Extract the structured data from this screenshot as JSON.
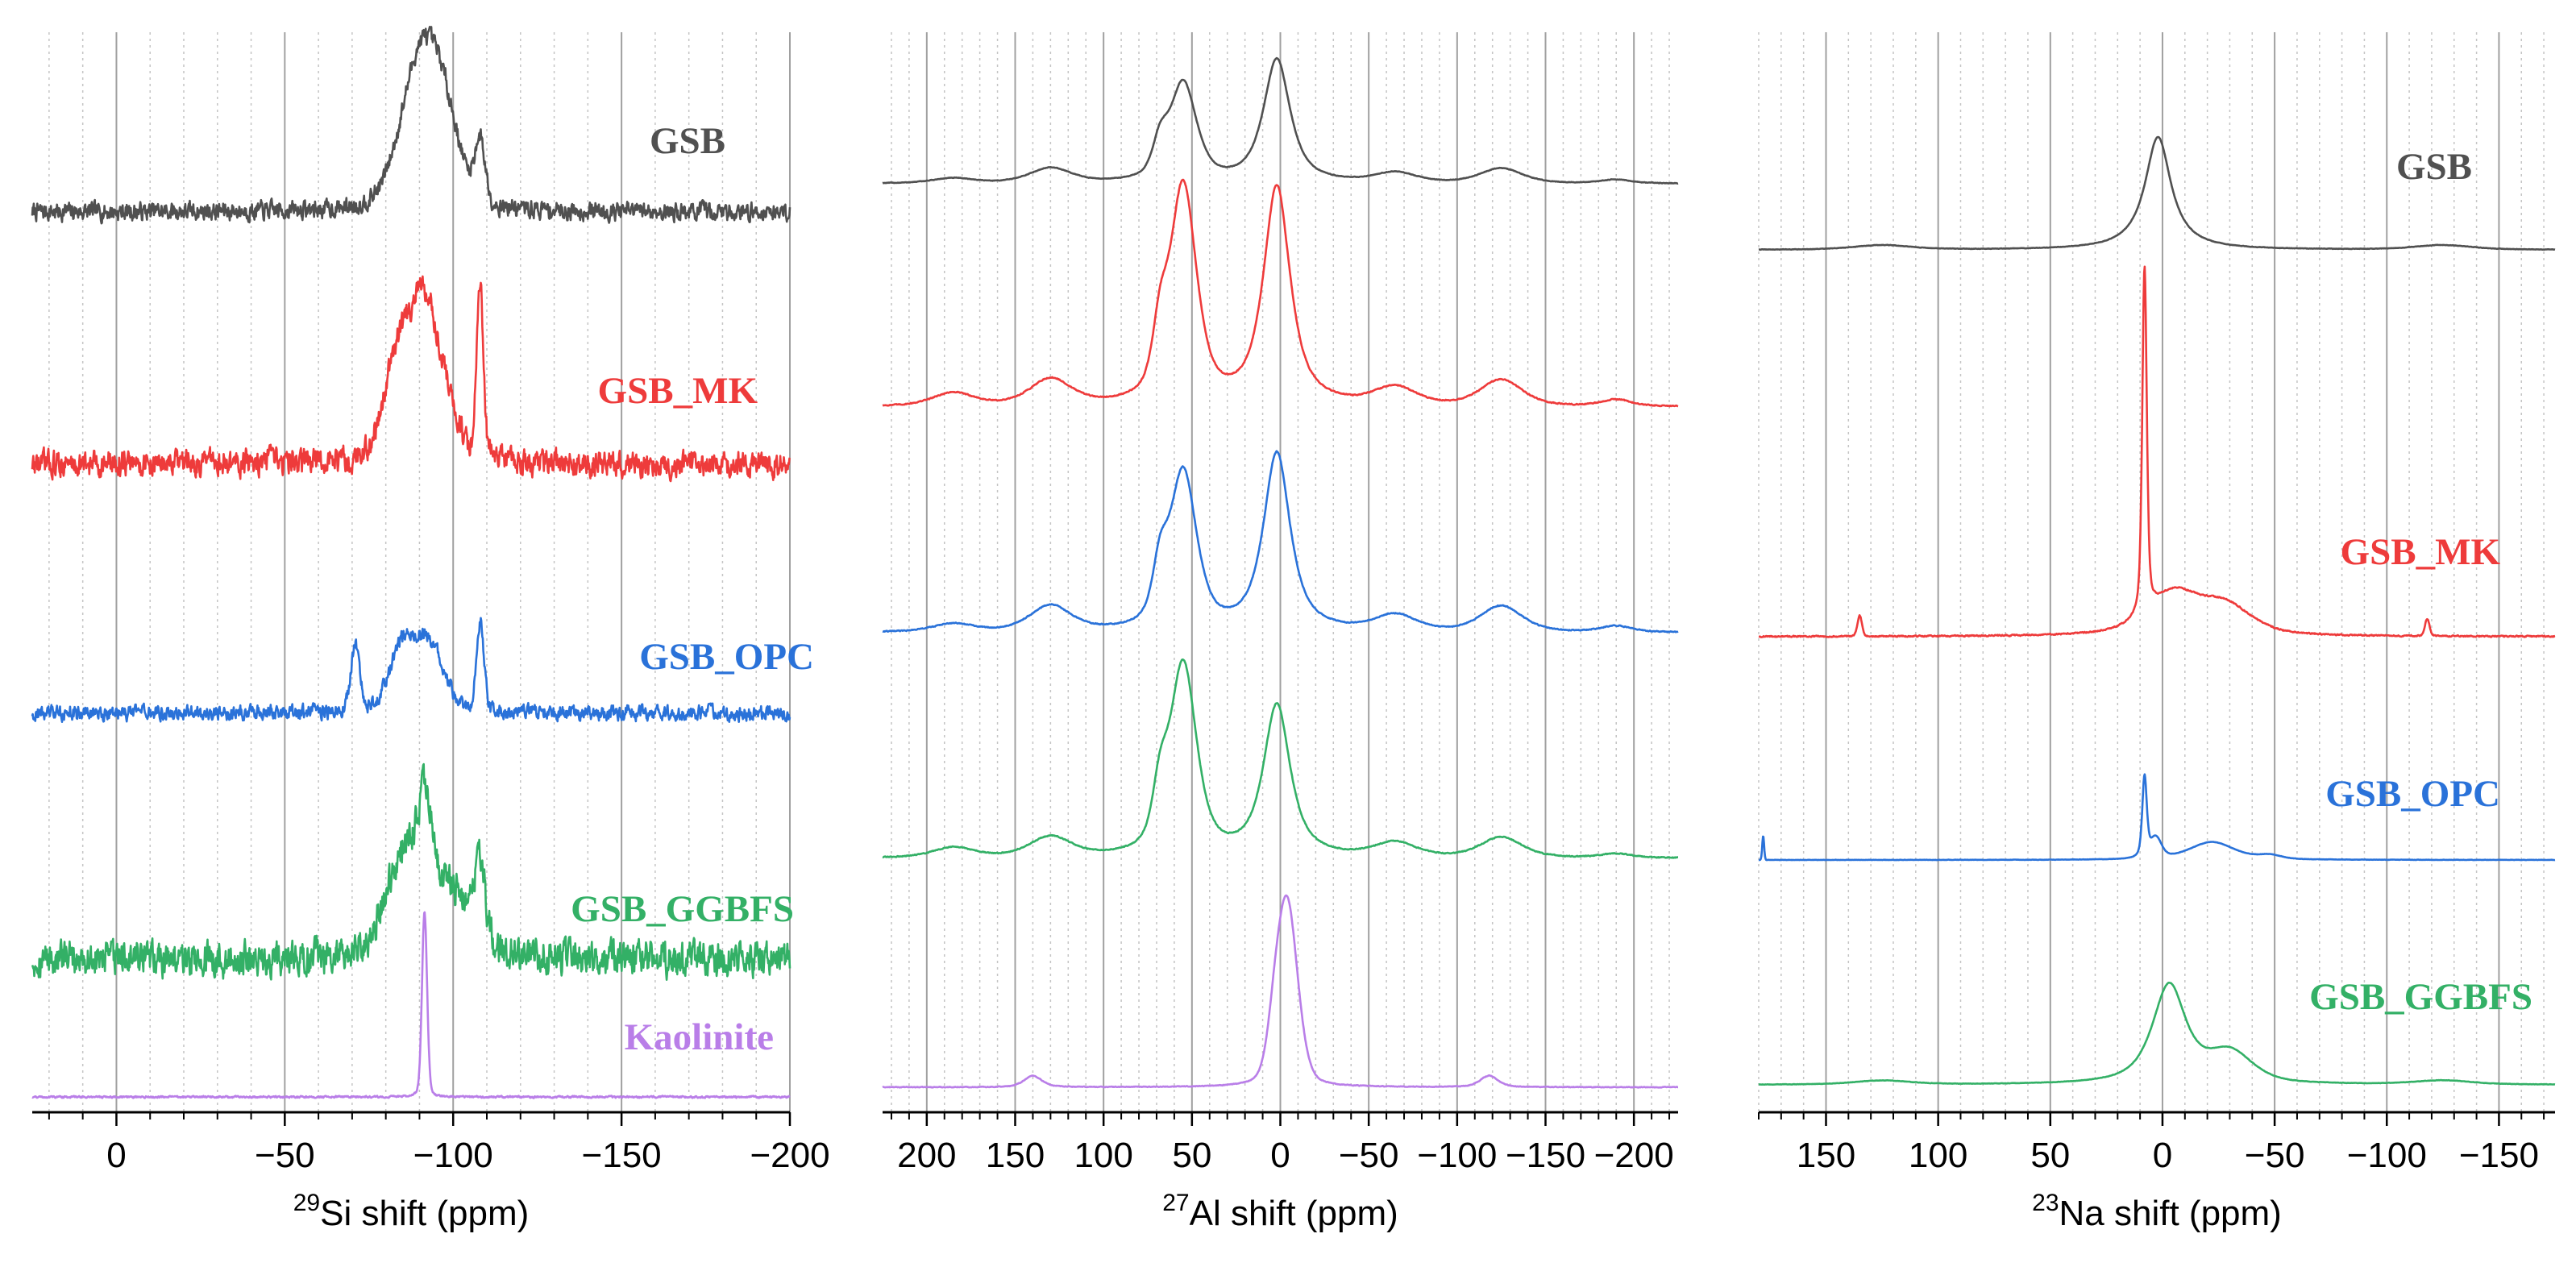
{
  "chart_data": [
    {
      "type": "line",
      "nucleus": "29Si",
      "title": "",
      "xlabel": "29Si shift (ppm)",
      "xlabel_sup": "29",
      "xlabel_rest": "Si shift (ppm)",
      "xlim": [
        25,
        -200
      ],
      "xticks": [
        0,
        -50,
        -100,
        -150,
        -200
      ],
      "xtick_labels": [
        "0",
        "−50",
        "−100",
        "−150",
        "−200"
      ],
      "minor_step": 10,
      "series": [
        {
          "name": "GSB",
          "color": "#505050",
          "noise": 0.11,
          "peaks": [
            [
              -90,
              1.05,
              7,
              0.3
            ],
            [
              -97,
              0.55,
              6,
              0.3
            ],
            [
              -108,
              0.45,
              1.8,
              0.1
            ]
          ]
        },
        {
          "name": "GSB_MK",
          "color": "#ee3b3b",
          "noise": 0.12,
          "peaks": [
            [
              -91,
              1.0,
              7,
              0.3
            ],
            [
              -82,
              0.3,
              4,
              0.3
            ],
            [
              -108,
              0.95,
              1.2,
              0.1
            ]
          ]
        },
        {
          "name": "GSB_OPC",
          "color": "#2a72d9",
          "noise": 0.1,
          "peaks": [
            [
              -71,
              0.55,
              1.6,
              0.1
            ],
            [
              -85,
              0.55,
              4.5,
              0.3
            ],
            [
              -93,
              0.55,
              5,
              0.3
            ],
            [
              -108,
              0.75,
              1.3,
              0.1
            ]
          ]
        },
        {
          "name": "GSB_GGBFS",
          "color": "#33b066",
          "noise": 0.14,
          "peaks": [
            [
              -86,
              0.55,
              7,
              0.3
            ],
            [
              -92,
              0.45,
              2.5,
              0.3
            ],
            [
              -100,
              0.3,
              6,
              0.3
            ],
            [
              -108,
              0.45,
              1.8,
              0.1
            ]
          ]
        },
        {
          "name": "Kaolinite",
          "color": "#b97ee8",
          "noise": 0.008,
          "peaks": [
            [
              -91.5,
              1.0,
              0.9,
              0.2
            ]
          ]
        }
      ]
    },
    {
      "type": "line",
      "nucleus": "27Al",
      "title": "",
      "xlabel": "27Al shift (ppm)",
      "xlabel_sup": "27",
      "xlabel_rest": "Al shift (ppm)",
      "xlim": [
        225,
        -225
      ],
      "xticks": [
        200,
        150,
        100,
        50,
        0,
        -50,
        -100,
        -150,
        -200
      ],
      "xtick_labels": [
        "200",
        "150",
        "100",
        "50",
        "0",
        "−50",
        "−100",
        "−150",
        "−200"
      ],
      "minor_step": 10,
      "series": [
        {
          "name": "GSB",
          "color": "#505050",
          "noise": 0.004,
          "peaks": [
            [
              55,
              0.8,
              9,
              0.6
            ],
            [
              68,
              0.25,
              5,
              0.5
            ],
            [
              2,
              1.0,
              9,
              0.8
            ],
            [
              130,
              0.12,
              14,
              0.5
            ],
            [
              -125,
              0.12,
              14,
              0.5
            ],
            [
              185,
              0.04,
              14,
              0.5
            ],
            [
              -65,
              0.08,
              14,
              0.5
            ],
            [
              -190,
              0.03,
              10,
              0.5
            ]
          ]
        },
        {
          "name": "GSB_MK",
          "color": "#ee3b3b",
          "noise": 0.004,
          "peaks": [
            [
              55,
              1.0,
              9,
              0.6
            ],
            [
              68,
              0.25,
              5,
              0.5
            ],
            [
              2,
              1.0,
              9,
              0.8
            ],
            [
              130,
              0.12,
              14,
              0.5
            ],
            [
              -125,
              0.12,
              14,
              0.5
            ],
            [
              185,
              0.06,
              14,
              0.5
            ],
            [
              -65,
              0.08,
              14,
              0.5
            ],
            [
              -190,
              0.03,
              10,
              0.5
            ]
          ]
        },
        {
          "name": "GSB_OPC",
          "color": "#2a72d9",
          "noise": 0.004,
          "peaks": [
            [
              55,
              0.8,
              9,
              0.6
            ],
            [
              68,
              0.25,
              5,
              0.5
            ],
            [
              2,
              0.9,
              9,
              0.8
            ],
            [
              130,
              0.13,
              14,
              0.5
            ],
            [
              -125,
              0.13,
              14,
              0.5
            ],
            [
              185,
              0.04,
              14,
              0.5
            ],
            [
              -65,
              0.08,
              14,
              0.5
            ],
            [
              -190,
              0.03,
              10,
              0.5
            ]
          ]
        },
        {
          "name": "GSB_GGBFS",
          "color": "#33b066",
          "noise": 0.004,
          "peaks": [
            [
              55,
              0.95,
              9,
              0.6
            ],
            [
              68,
              0.25,
              5,
              0.5
            ],
            [
              2,
              0.75,
              9,
              0.8
            ],
            [
              130,
              0.1,
              14,
              0.5
            ],
            [
              -125,
              0.1,
              14,
              0.5
            ],
            [
              185,
              0.05,
              14,
              0.5
            ],
            [
              -65,
              0.07,
              14,
              0.5
            ],
            [
              -190,
              0.02,
              10,
              0.5
            ]
          ]
        },
        {
          "name": "Kaolinite",
          "color": "#b97ee8",
          "noise": 0.003,
          "peaks": [
            [
              -4,
              0.95,
              7,
              0.3
            ],
            [
              3,
              0.2,
              5,
              0.3
            ],
            [
              140,
              0.06,
              6,
              0.5
            ],
            [
              -118,
              0.06,
              6,
              0.5
            ]
          ]
        }
      ]
    },
    {
      "type": "line",
      "nucleus": "23Na",
      "title": "",
      "xlabel": "23Na shift (ppm)",
      "xlabel_sup": "23",
      "xlabel_rest": "Na shift (ppm)",
      "xlim": [
        180,
        -175
      ],
      "xticks": [
        150,
        100,
        50,
        0,
        -50,
        -100,
        -150
      ],
      "xtick_labels": [
        "150",
        "100",
        "50",
        "0",
        "−50",
        "−100",
        "−150"
      ],
      "minor_step": 10,
      "series": [
        {
          "name": "GSB",
          "color": "#505050",
          "noise": 0.003,
          "peaks": [
            [
              2,
              1.0,
              7,
              1.0
            ],
            [
              125,
              0.04,
              15,
              0.5
            ],
            [
              -125,
              0.04,
              15,
              0.5
            ]
          ]
        },
        {
          "name": "GSB_MK",
          "color": "#ee3b3b",
          "noise": 0.003,
          "peaks": [
            [
              8,
              1.0,
              1.2,
              0.5
            ],
            [
              -5,
              0.12,
              14,
              0.7
            ],
            [
              -28,
              0.08,
              14,
              0.5
            ],
            [
              135,
              0.06,
              1.2,
              0.2
            ],
            [
              -118,
              0.05,
              1.2,
              0.2
            ]
          ]
        },
        {
          "name": "GSB_OPC",
          "color": "#2a72d9",
          "noise": 0.003,
          "peaks": [
            [
              8,
              1.0,
              1.2,
              0.5
            ],
            [
              3,
              0.25,
              3,
              0.3
            ],
            [
              -22,
              0.22,
              12,
              0.5
            ],
            [
              -48,
              0.05,
              6,
              0.5
            ],
            [
              178,
              0.3,
              0.5,
              0.0
            ]
          ]
        },
        {
          "name": "GSB_GGBFS",
          "color": "#33b066",
          "noise": 0.003,
          "peaks": [
            [
              -3,
              1.0,
              9,
              0.8
            ],
            [
              -30,
              0.3,
              12,
              0.5
            ],
            [
              125,
              0.04,
              15,
              0.5
            ],
            [
              -125,
              0.04,
              15,
              0.5
            ]
          ]
        }
      ]
    }
  ]
}
